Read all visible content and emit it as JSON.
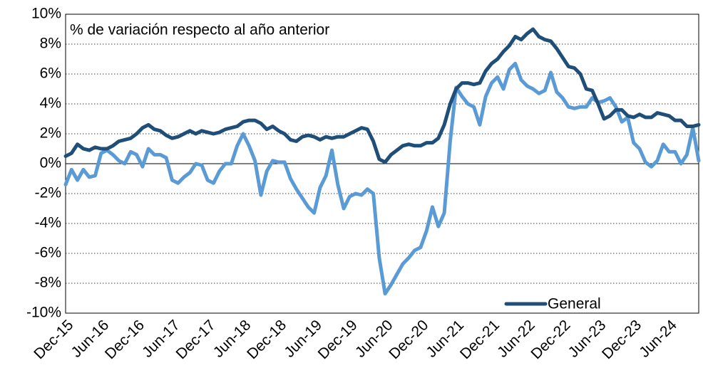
{
  "chart_data": {
    "type": "line",
    "annotation": "% de variación respecto al año anterior",
    "categories": [
      "Dec-15",
      null,
      null,
      null,
      null,
      null,
      "Jun-16",
      null,
      null,
      null,
      null,
      null,
      "Dec-16",
      null,
      null,
      null,
      null,
      null,
      "Jun-17",
      null,
      null,
      null,
      null,
      null,
      "Dec-17",
      null,
      null,
      null,
      null,
      null,
      "Jun-18",
      null,
      null,
      null,
      null,
      null,
      "Dec-18",
      null,
      null,
      null,
      null,
      null,
      "Jun-19",
      null,
      null,
      null,
      null,
      null,
      "Dec-19",
      null,
      null,
      null,
      null,
      null,
      "Jun-20",
      null,
      null,
      null,
      null,
      null,
      "Dec-20",
      null,
      null,
      null,
      null,
      null,
      "Jun-21",
      null,
      null,
      null,
      null,
      null,
      "Dec-21",
      null,
      null,
      null,
      null,
      null,
      "Jun-22",
      null,
      null,
      null,
      null,
      null,
      "Dec-22",
      null,
      null,
      null,
      null,
      null,
      "Jun-23",
      null,
      null,
      null,
      null,
      null,
      "Dec-23",
      null,
      null,
      null,
      null,
      null,
      "Jun-24",
      null,
      null,
      null,
      null,
      null
    ],
    "series": [
      {
        "name": "General",
        "color": "#1f4e79",
        "values": [
          0.5,
          0.7,
          1.3,
          1.0,
          0.9,
          1.1,
          1.0,
          1.0,
          1.2,
          1.5,
          1.6,
          1.7,
          2.0,
          2.4,
          2.6,
          2.3,
          2.2,
          1.9,
          1.7,
          1.8,
          2.0,
          2.2,
          2.0,
          2.2,
          2.1,
          2.0,
          2.1,
          2.3,
          2.4,
          2.5,
          2.8,
          2.9,
          2.9,
          2.7,
          2.3,
          2.5,
          2.2,
          2.0,
          1.6,
          1.5,
          1.8,
          1.9,
          1.8,
          1.6,
          1.8,
          1.7,
          1.8,
          1.8,
          2.0,
          2.2,
          2.4,
          2.3,
          1.5,
          0.3,
          0.1,
          0.6,
          0.9,
          1.2,
          1.3,
          1.2,
          1.2,
          1.4,
          1.4,
          1.7,
          2.6,
          4.0,
          5.0,
          5.4,
          5.4,
          5.3,
          5.4,
          6.2,
          6.7,
          7.0,
          7.5,
          7.9,
          8.5,
          8.3,
          8.7,
          9.0,
          8.5,
          8.3,
          8.2,
          7.7,
          7.1,
          6.5,
          6.4,
          6.0,
          5.0,
          4.9,
          4.0,
          3.0,
          3.2,
          3.6,
          3.6,
          3.2,
          3.1,
          3.3,
          3.1,
          3.1,
          3.4,
          3.3,
          3.2,
          2.9,
          2.9,
          2.5,
          2.5,
          2.6
        ]
      },
      {
        "color": "#5b9bd5",
        "values": [
          -1.4,
          -0.4,
          -1.1,
          -0.4,
          -0.9,
          -0.8,
          0.7,
          0.9,
          0.6,
          0.2,
          0.0,
          0.8,
          0.6,
          -0.2,
          1.0,
          0.6,
          0.6,
          0.4,
          -1.1,
          -1.3,
          -0.9,
          -0.6,
          0.0,
          -0.1,
          -1.1,
          -1.3,
          -0.5,
          0.0,
          0.0,
          1.2,
          2.0,
          1.2,
          0.2,
          -2.1,
          -0.5,
          0.2,
          0.1,
          0.1,
          -1.0,
          -1.7,
          -2.3,
          -2.9,
          -3.3,
          -1.6,
          -0.8,
          0.9,
          -1.4,
          -3.0,
          -2.2,
          -2.0,
          -2.1,
          -1.7,
          -2.0,
          -6.3,
          -8.7,
          -8.1,
          -7.4,
          -6.7,
          -6.3,
          -5.8,
          -5.6,
          -4.5,
          -2.9,
          -4.2,
          -3.3,
          1.5,
          5.1,
          4.5,
          4.0,
          3.8,
          2.6,
          4.5,
          5.4,
          5.8,
          5.0,
          6.3,
          6.7,
          5.6,
          5.2,
          5.0,
          4.7,
          4.9,
          6.1,
          4.8,
          4.4,
          3.8,
          3.7,
          3.8,
          3.8,
          4.4,
          4.1,
          4.2,
          4.4,
          3.8,
          2.8,
          3.1,
          1.4,
          1.0,
          0.1,
          -0.2,
          0.2,
          1.3,
          0.8,
          0.8,
          0.0,
          0.6,
          2.4,
          0.2
        ]
      }
    ],
    "ylim": [
      -10,
      10
    ],
    "yticks": [
      {
        "value": -10,
        "label": "-10%"
      },
      {
        "value": -8,
        "label": "-8%"
      },
      {
        "value": -6,
        "label": "-6%"
      },
      {
        "value": -4,
        "label": "-4%"
      },
      {
        "value": -2,
        "label": "-2%"
      },
      {
        "value": 0,
        "label": "0%"
      },
      {
        "value": 2,
        "label": "2%"
      },
      {
        "value": 4,
        "label": "4%"
      },
      {
        "value": 6,
        "label": "6%"
      },
      {
        "value": 8,
        "label": "8%"
      },
      {
        "value": 10,
        "label": "10%"
      }
    ],
    "grid": true,
    "legend": "lower right"
  }
}
